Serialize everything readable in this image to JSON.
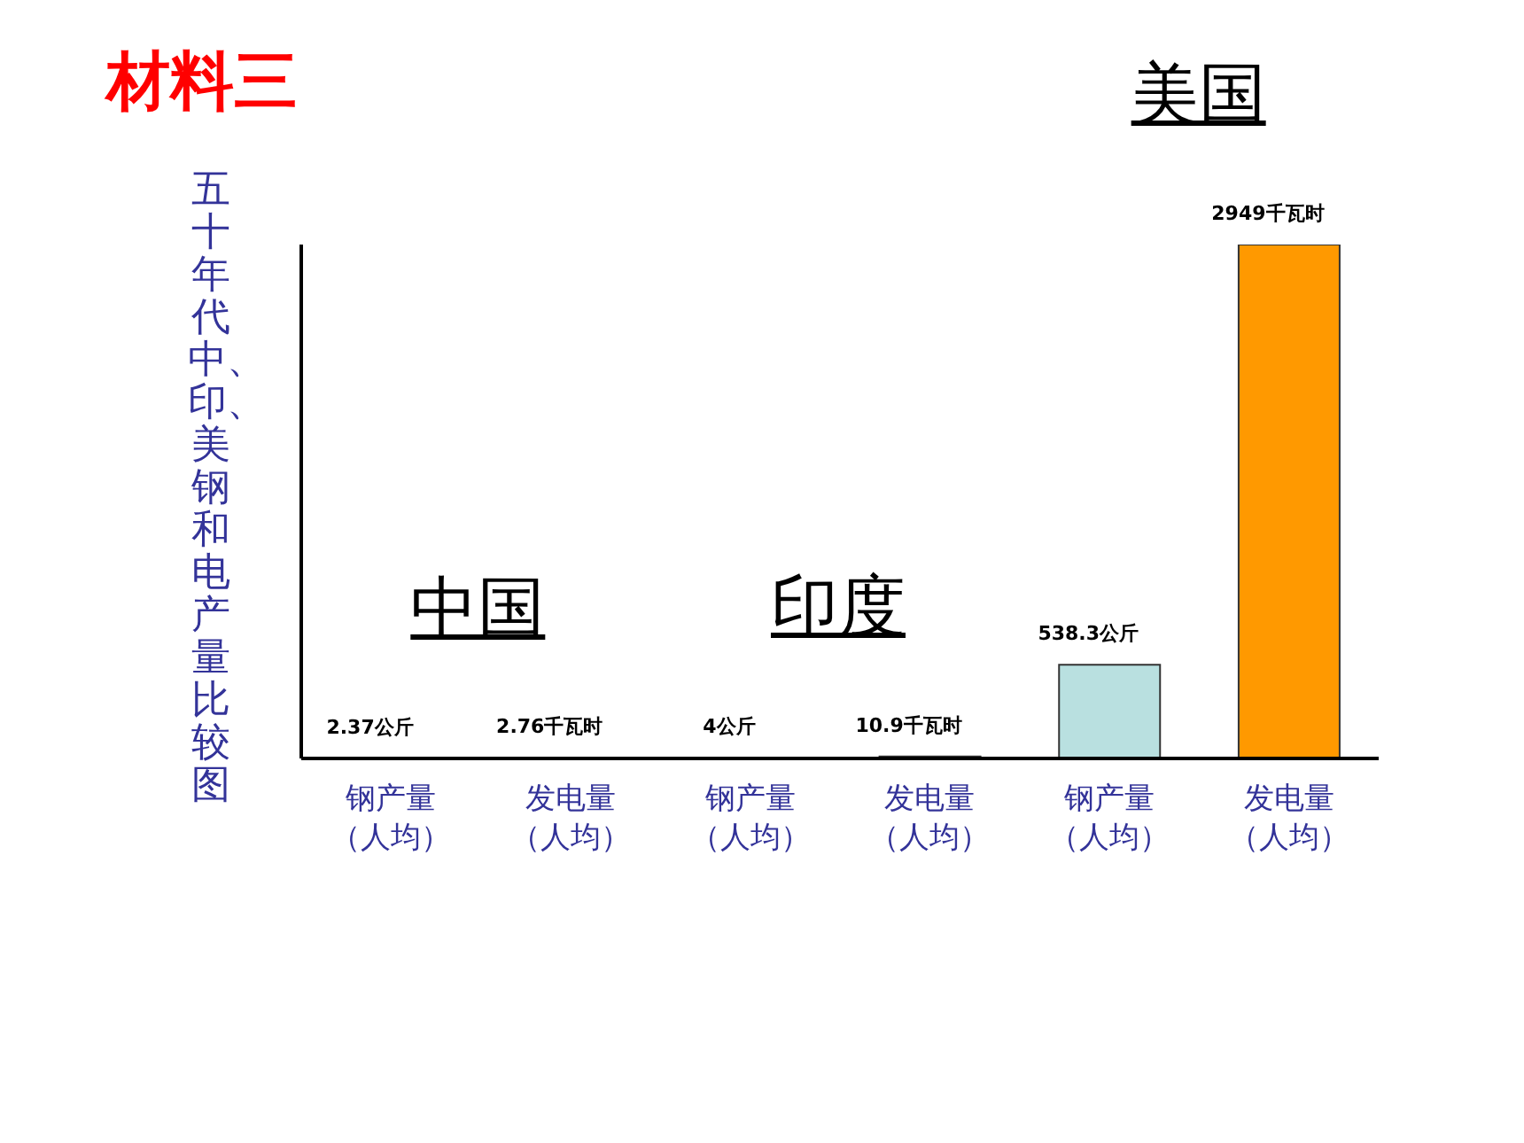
{
  "chart_data": {
    "type": "bar",
    "title": "材料三",
    "ylabel": "五十年代中、印、美钢和电产量比较图",
    "categories": [
      "钢产量（人均）",
      "发电量（人均）",
      "钢产量（人均）",
      "发电量（人均）",
      "钢产量（人均）",
      "发电量（人均）"
    ],
    "values": [
      2.37,
      2.76,
      4,
      10.9,
      538.3,
      2949
    ],
    "colors": [
      "#b9e0e0",
      "#ff9900",
      "#b9e0e0",
      "#ff9900",
      "#b9e0e0",
      "#ff9900"
    ],
    "value_labels": [
      "2.37公斤",
      "2.76千瓦时",
      "4公斤",
      "10.9千瓦时",
      "538.3公斤",
      "2949千瓦时"
    ],
    "annotations": [
      "中国",
      "印度",
      "美国"
    ],
    "tick_labels": "x",
    "grid": false,
    "legend": false
  }
}
